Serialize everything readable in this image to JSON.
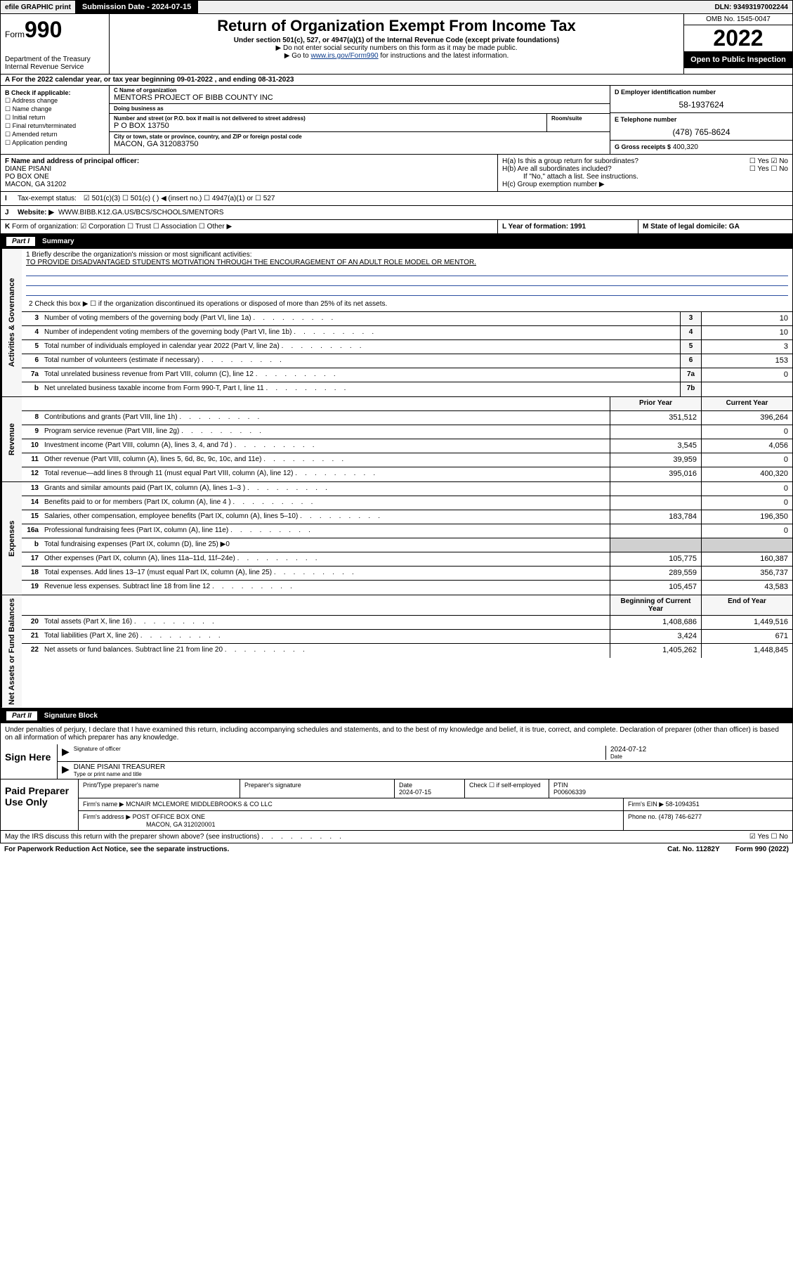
{
  "topbar": {
    "efile": "efile GRAPHIC print",
    "submission_label": "Submission Date - 2024-07-15",
    "dln": "DLN: 93493197002244"
  },
  "header": {
    "form_word": "Form",
    "form_num": "990",
    "dept": "Department of the Treasury",
    "irs": "Internal Revenue Service",
    "title": "Return of Organization Exempt From Income Tax",
    "sub": "Under section 501(c), 527, or 4947(a)(1) of the Internal Revenue Code (except private foundations)",
    "note1": "▶ Do not enter social security numbers on this form as it may be made public.",
    "note2_pre": "▶ Go to ",
    "note2_link": "www.irs.gov/Form990",
    "note2_post": " for instructions and the latest information.",
    "omb": "OMB No. 1545-0047",
    "year": "2022",
    "open": "Open to Public Inspection"
  },
  "row_a": "A For the 2022 calendar year, or tax year beginning 09-01-2022    , and ending 08-31-2023",
  "col_b": {
    "hdr": "B Check if applicable:",
    "opts": [
      "☐ Address change",
      "☐ Name change",
      "☐ Initial return",
      "☐ Final return/terminated",
      "☐ Amended return",
      "☐ Application pending"
    ]
  },
  "col_c": {
    "name_lbl": "C Name of organization",
    "name": "MENTORS PROJECT OF BIBB COUNTY INC",
    "dba_lbl": "Doing business as",
    "dba": "",
    "street_lbl": "Number and street (or P.O. box if mail is not delivered to street address)",
    "street": "P O BOX 13750",
    "room_lbl": "Room/suite",
    "city_lbl": "City or town, state or province, country, and ZIP or foreign postal code",
    "city": "MACON, GA  312083750"
  },
  "col_d": {
    "ein_lbl": "D Employer identification number",
    "ein": "58-1937624",
    "tel_lbl": "E Telephone number",
    "tel": "(478) 765-8624",
    "gross_lbl": "G Gross receipts $",
    "gross": "400,320"
  },
  "block_f": {
    "lbl": "F  Name and address of principal officer:",
    "name": "DIANE PISANI",
    "addr1": "PO BOX ONE",
    "addr2": "MACON, GA  31202",
    "ha": "H(a)  Is this a group return for subordinates?",
    "ha_ans": "☐ Yes ☑ No",
    "hb": "H(b)  Are all subordinates included?",
    "hb_ans": "☐ Yes ☐ No",
    "hb_note": "If \"No,\" attach a list. See instructions.",
    "hc": "H(c)  Group exemption number ▶"
  },
  "row_i": {
    "lead": "I",
    "label": "Tax-exempt status:",
    "opts": "☑ 501(c)(3)    ☐ 501(c) (  ) ◀ (insert no.)    ☐ 4947(a)(1) or   ☐ 527"
  },
  "row_j": {
    "lead": "J",
    "label": "Website: ▶",
    "val": "WWW.BIBB.K12.GA.US/BCS/SCHOOLS/MENTORS"
  },
  "row_k": {
    "lead": "K",
    "label": "Form of organization:",
    "opts": "☑ Corporation  ☐ Trust  ☐ Association  ☐ Other ▶",
    "l": "L Year of formation: 1991",
    "m": "M State of legal domicile: GA"
  },
  "part1": {
    "num": "Part I",
    "title": "Summary"
  },
  "mission": {
    "q": "1  Briefly describe the organization's mission or most significant activities:",
    "text": "TO PROVIDE DISADVANTAGED STUDENTS MOTIVATION THROUGH THE ENCOURAGEMENT OF AN ADULT ROLE MODEL OR MENTOR."
  },
  "line2": "2   Check this box ▶ ☐  if the organization discontinued its operations or disposed of more than 25% of its net assets.",
  "sections": {
    "gov": "Activities & Governance",
    "rev": "Revenue",
    "exp": "Expenses",
    "net": "Net Assets or Fund Balances"
  },
  "headers2": {
    "prior": "Prior Year",
    "current": "Current Year",
    "begin": "Beginning of Current Year",
    "end": "End of Year"
  },
  "govlines": [
    {
      "n": "3",
      "d": "Number of voting members of the governing body (Part VI, line 1a)",
      "c": "3",
      "v": "10"
    },
    {
      "n": "4",
      "d": "Number of independent voting members of the governing body (Part VI, line 1b)",
      "c": "4",
      "v": "10"
    },
    {
      "n": "5",
      "d": "Total number of individuals employed in calendar year 2022 (Part V, line 2a)",
      "c": "5",
      "v": "3"
    },
    {
      "n": "6",
      "d": "Total number of volunteers (estimate if necessary)",
      "c": "6",
      "v": "153"
    },
    {
      "n": "7a",
      "d": "Total unrelated business revenue from Part VIII, column (C), line 12",
      "c": "7a",
      "v": "0"
    },
    {
      "n": "b",
      "d": "Net unrelated business taxable income from Form 990-T, Part I, line 11",
      "c": "7b",
      "v": ""
    }
  ],
  "revlines": [
    {
      "n": "8",
      "d": "Contributions and grants (Part VIII, line 1h)",
      "p": "351,512",
      "c": "396,264"
    },
    {
      "n": "9",
      "d": "Program service revenue (Part VIII, line 2g)",
      "p": "",
      "c": "0"
    },
    {
      "n": "10",
      "d": "Investment income (Part VIII, column (A), lines 3, 4, and 7d )",
      "p": "3,545",
      "c": "4,056"
    },
    {
      "n": "11",
      "d": "Other revenue (Part VIII, column (A), lines 5, 6d, 8c, 9c, 10c, and 11e)",
      "p": "39,959",
      "c": "0"
    },
    {
      "n": "12",
      "d": "Total revenue—add lines 8 through 11 (must equal Part VIII, column (A), line 12)",
      "p": "395,016",
      "c": "400,320"
    }
  ],
  "explines": [
    {
      "n": "13",
      "d": "Grants and similar amounts paid (Part IX, column (A), lines 1–3 )",
      "p": "",
      "c": "0"
    },
    {
      "n": "14",
      "d": "Benefits paid to or for members (Part IX, column (A), line 4 )",
      "p": "",
      "c": "0"
    },
    {
      "n": "15",
      "d": "Salaries, other compensation, employee benefits (Part IX, column (A), lines 5–10)",
      "p": "183,784",
      "c": "196,350"
    },
    {
      "n": "16a",
      "d": "Professional fundraising fees (Part IX, column (A), line 11e)",
      "p": "",
      "c": "0"
    },
    {
      "n": "b",
      "d": "Total fundraising expenses (Part IX, column (D), line 25) ▶0",
      "p": "█",
      "c": "█"
    },
    {
      "n": "17",
      "d": "Other expenses (Part IX, column (A), lines 11a–11d, 11f–24e)",
      "p": "105,775",
      "c": "160,387"
    },
    {
      "n": "18",
      "d": "Total expenses. Add lines 13–17 (must equal Part IX, column (A), line 25)",
      "p": "289,559",
      "c": "356,737"
    },
    {
      "n": "19",
      "d": "Revenue less expenses. Subtract line 18 from line 12",
      "p": "105,457",
      "c": "43,583"
    }
  ],
  "netlines": [
    {
      "n": "20",
      "d": "Total assets (Part X, line 16)",
      "p": "1,408,686",
      "c": "1,449,516"
    },
    {
      "n": "21",
      "d": "Total liabilities (Part X, line 26)",
      "p": "3,424",
      "c": "671"
    },
    {
      "n": "22",
      "d": "Net assets or fund balances. Subtract line 21 from line 20",
      "p": "1,405,262",
      "c": "1,448,845"
    }
  ],
  "part2": {
    "num": "Part II",
    "title": "Signature Block"
  },
  "sig": {
    "decl": "Under penalties of perjury, I declare that I have examined this return, including accompanying schedules and statements, and to the best of my knowledge and belief, it is true, correct, and complete. Declaration of preparer (other than officer) is based on all information of which preparer has any knowledge.",
    "sign_here": "Sign Here",
    "sig_lbl": "Signature of officer",
    "date_lbl": "Date",
    "date": "2024-07-12",
    "name": "DIANE PISANI TREASURER",
    "name_lbl": "Type or print name and title"
  },
  "prep": {
    "label": "Paid Preparer Use Only",
    "h1": "Print/Type preparer's name",
    "h2": "Preparer's signature",
    "h3": "Date",
    "h3v": "2024-07-15",
    "h4": "Check ☐ if self-employed",
    "h5": "PTIN",
    "h5v": "P00606339",
    "firm_lbl": "Firm's name     ▶",
    "firm": "MCNAIR MCLEMORE MIDDLEBROOKS & CO LLC",
    "fein_lbl": "Firm's EIN ▶",
    "fein": "58-1094351",
    "addr_lbl": "Firm's address ▶",
    "addr1": "POST OFFICE BOX ONE",
    "addr2": "MACON, GA  312020001",
    "phone_lbl": "Phone no.",
    "phone": "(478) 746-6277"
  },
  "footer": {
    "q": "May the IRS discuss this return with the preparer shown above? (see instructions)",
    "ans": "☑ Yes   ☐ No",
    "paperwork": "For Paperwork Reduction Act Notice, see the separate instructions.",
    "cat": "Cat. No. 11282Y",
    "form": "Form 990 (2022)"
  },
  "colors": {
    "link": "#0a3a8a",
    "rule": "#2a4ea0",
    "shade": "#f6f6f6"
  }
}
